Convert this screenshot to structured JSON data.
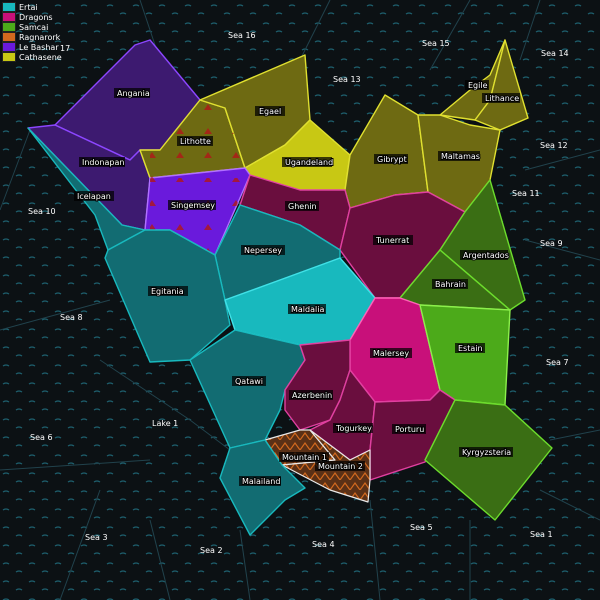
{
  "legend": [
    {
      "name": "Ertai",
      "color": "#18b9be"
    },
    {
      "name": "Dragons",
      "color": "#c8107a"
    },
    {
      "name": "Samcai",
      "color": "#4caa1a"
    },
    {
      "name": "Ragnarork",
      "color": "#d2691e"
    },
    {
      "name": "Le Bashar",
      "color": "#6a1adc"
    },
    {
      "name": "Cathasene",
      "color": "#c8c814"
    }
  ],
  "seas": {
    "s1": "Sea 1",
    "s2": "Sea 2",
    "s3": "Sea 3",
    "s4": "Sea 4",
    "s5": "Sea 5",
    "s6": "Sea 6",
    "s7": "Sea 7",
    "s8": "Sea 8",
    "s9": "Sea 9",
    "s10": "Sea 10",
    "s11": "Sea 11",
    "s12": "Sea 12",
    "s13": "Sea 13",
    "s14": "Sea 14",
    "s15": "Sea 15",
    "s16": "Sea 16",
    "s17": "17",
    "lake1": "Lake 1"
  },
  "provinces": {
    "angania": "Angania",
    "lithotte": "Lithotte",
    "egael": "Egael",
    "ugandeland": "Ugandeland",
    "gibrypt": "Gibrypt",
    "maltamas": "Maltamas",
    "egile": "Egile",
    "lithance": "Lithance",
    "indonapan": "Indonapan",
    "icelapan": "Icelapan",
    "singemsey": "Singemsey",
    "ghenin": "Ghenin",
    "tunerrat": "Tunerrat",
    "argentados": "Argentados",
    "bahrain": "Bahrain",
    "nepersey": "Nepersey",
    "egitania": "Egitania",
    "maldalia": "Maldalia",
    "malersey": "Malersey",
    "estain": "Estain",
    "qatawi": "Qatawi",
    "azerbenin": "Azerbenin",
    "togurkey": "Togurkey",
    "porturu": "Porturu",
    "kyrgyzsteria": "Kyrgyzsteria",
    "mountain1": "Mountain 1",
    "mountain2": "Mountain 2",
    "malailand": "Malailand"
  },
  "colors": {
    "ertai": "#126c72",
    "ertai_bright": "#18b9be",
    "dragons": "#c8107a",
    "dragons_dark": "#6a0e3e",
    "samcai": "#4caa1a",
    "samcai_dark": "#3a6e14",
    "bashar": "#6a1adc",
    "bashar_dark": "#3d1a70",
    "cath": "#c8c814",
    "cath_dark": "#6e6a12",
    "ragnarork": "#d2691e",
    "sea": "#0c1114"
  }
}
